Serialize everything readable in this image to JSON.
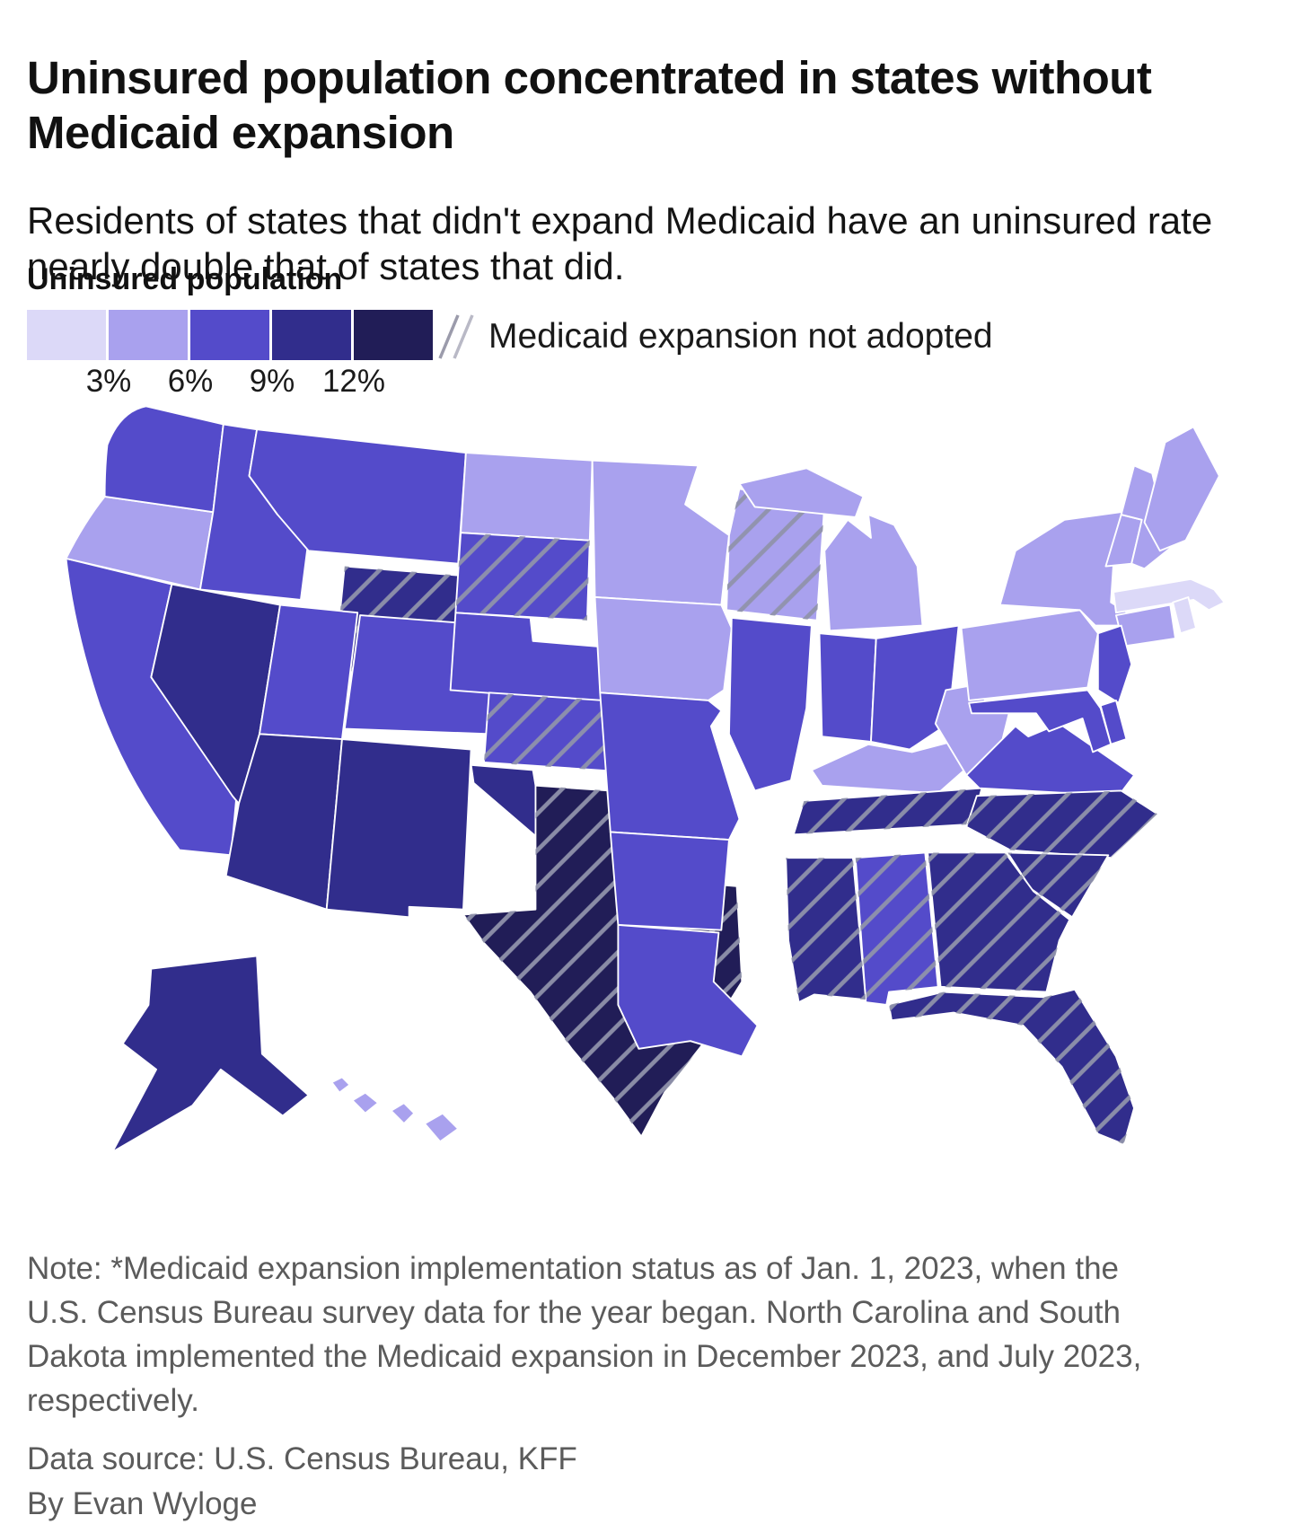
{
  "header": {
    "title": "Uninsured population concentrated in states without Medicaid expansion",
    "subtitle": "Residents of states that didn't expand Medicaid have an uninsured rate nearly double that of states that did."
  },
  "legend": {
    "title": "Uninsured population",
    "tick_labels": [
      "3%",
      "6%",
      "9%",
      "12%"
    ],
    "bucket_colors": [
      "#dcd9f8",
      "#a9a1ee",
      "#544bca",
      "#312d8c",
      "#211d57"
    ],
    "hatch_label": "Medicaid expansion not adopted",
    "hatch_line_color": "#8f92ab",
    "state_border_color": "#ffffff"
  },
  "chart_data": {
    "type": "choropleth",
    "title": "Uninsured population by state",
    "unit": "percent of residents uninsured",
    "buckets": [
      "<3%",
      "3-6%",
      "6-9%",
      "9-12%",
      "12%+"
    ],
    "hatch_meaning": "Medicaid expansion not adopted",
    "states": [
      {
        "abbr": "AL",
        "name": "Alabama",
        "bucket": 2,
        "expansion_not_adopted": true
      },
      {
        "abbr": "AK",
        "name": "Alaska",
        "bucket": 3,
        "expansion_not_adopted": false
      },
      {
        "abbr": "AZ",
        "name": "Arizona",
        "bucket": 3,
        "expansion_not_adopted": false
      },
      {
        "abbr": "AR",
        "name": "Arkansas",
        "bucket": 2,
        "expansion_not_adopted": false
      },
      {
        "abbr": "CA",
        "name": "California",
        "bucket": 2,
        "expansion_not_adopted": false
      },
      {
        "abbr": "CO",
        "name": "Colorado",
        "bucket": 2,
        "expansion_not_adopted": false
      },
      {
        "abbr": "CT",
        "name": "Connecticut",
        "bucket": 1,
        "expansion_not_adopted": false
      },
      {
        "abbr": "DE",
        "name": "Delaware",
        "bucket": 2,
        "expansion_not_adopted": false
      },
      {
        "abbr": "FL",
        "name": "Florida",
        "bucket": 3,
        "expansion_not_adopted": true
      },
      {
        "abbr": "GA",
        "name": "Georgia",
        "bucket": 3,
        "expansion_not_adopted": true
      },
      {
        "abbr": "HI",
        "name": "Hawaii",
        "bucket": 1,
        "expansion_not_adopted": false
      },
      {
        "abbr": "ID",
        "name": "Idaho",
        "bucket": 2,
        "expansion_not_adopted": false
      },
      {
        "abbr": "IL",
        "name": "Illinois",
        "bucket": 2,
        "expansion_not_adopted": false
      },
      {
        "abbr": "IN",
        "name": "Indiana",
        "bucket": 2,
        "expansion_not_adopted": false
      },
      {
        "abbr": "IA",
        "name": "Iowa",
        "bucket": 1,
        "expansion_not_adopted": false
      },
      {
        "abbr": "KS",
        "name": "Kansas",
        "bucket": 2,
        "expansion_not_adopted": true
      },
      {
        "abbr": "KY",
        "name": "Kentucky",
        "bucket": 1,
        "expansion_not_adopted": false
      },
      {
        "abbr": "LA",
        "name": "Louisiana",
        "bucket": 2,
        "expansion_not_adopted": false
      },
      {
        "abbr": "ME",
        "name": "Maine",
        "bucket": 1,
        "expansion_not_adopted": false
      },
      {
        "abbr": "MD",
        "name": "Maryland",
        "bucket": 2,
        "expansion_not_adopted": false
      },
      {
        "abbr": "MA",
        "name": "Massachusetts",
        "bucket": 0,
        "expansion_not_adopted": false
      },
      {
        "abbr": "MI",
        "name": "Michigan",
        "bucket": 1,
        "expansion_not_adopted": false
      },
      {
        "abbr": "MN",
        "name": "Minnesota",
        "bucket": 1,
        "expansion_not_adopted": false
      },
      {
        "abbr": "MS",
        "name": "Mississippi",
        "bucket": 3,
        "expansion_not_adopted": true
      },
      {
        "abbr": "MO",
        "name": "Missouri",
        "bucket": 2,
        "expansion_not_adopted": false
      },
      {
        "abbr": "MT",
        "name": "Montana",
        "bucket": 2,
        "expansion_not_adopted": false
      },
      {
        "abbr": "NE",
        "name": "Nebraska",
        "bucket": 2,
        "expansion_not_adopted": false
      },
      {
        "abbr": "NV",
        "name": "Nevada",
        "bucket": 3,
        "expansion_not_adopted": false
      },
      {
        "abbr": "NH",
        "name": "New Hampshire",
        "bucket": 1,
        "expansion_not_adopted": false
      },
      {
        "abbr": "NJ",
        "name": "New Jersey",
        "bucket": 2,
        "expansion_not_adopted": false
      },
      {
        "abbr": "NM",
        "name": "New Mexico",
        "bucket": 3,
        "expansion_not_adopted": false
      },
      {
        "abbr": "NY",
        "name": "New York",
        "bucket": 1,
        "expansion_not_adopted": false
      },
      {
        "abbr": "NC",
        "name": "North Carolina",
        "bucket": 3,
        "expansion_not_adopted": true
      },
      {
        "abbr": "ND",
        "name": "North Dakota",
        "bucket": 1,
        "expansion_not_adopted": false
      },
      {
        "abbr": "OH",
        "name": "Ohio",
        "bucket": 2,
        "expansion_not_adopted": false
      },
      {
        "abbr": "OK",
        "name": "Oklahoma",
        "bucket": 3,
        "expansion_not_adopted": false
      },
      {
        "abbr": "OR",
        "name": "Oregon",
        "bucket": 1,
        "expansion_not_adopted": false
      },
      {
        "abbr": "PA",
        "name": "Pennsylvania",
        "bucket": 1,
        "expansion_not_adopted": false
      },
      {
        "abbr": "RI",
        "name": "Rhode Island",
        "bucket": 0,
        "expansion_not_adopted": false
      },
      {
        "abbr": "SC",
        "name": "South Carolina",
        "bucket": 3,
        "expansion_not_adopted": true
      },
      {
        "abbr": "SD",
        "name": "South Dakota",
        "bucket": 2,
        "expansion_not_adopted": true
      },
      {
        "abbr": "TN",
        "name": "Tennessee",
        "bucket": 3,
        "expansion_not_adopted": true
      },
      {
        "abbr": "TX",
        "name": "Texas",
        "bucket": 4,
        "expansion_not_adopted": true
      },
      {
        "abbr": "UT",
        "name": "Utah",
        "bucket": 2,
        "expansion_not_adopted": false
      },
      {
        "abbr": "VT",
        "name": "Vermont",
        "bucket": 1,
        "expansion_not_adopted": false
      },
      {
        "abbr": "VA",
        "name": "Virginia",
        "bucket": 2,
        "expansion_not_adopted": false
      },
      {
        "abbr": "WA",
        "name": "Washington",
        "bucket": 2,
        "expansion_not_adopted": false
      },
      {
        "abbr": "WV",
        "name": "West Virginia",
        "bucket": 1,
        "expansion_not_adopted": false
      },
      {
        "abbr": "WI",
        "name": "Wisconsin",
        "bucket": 1,
        "expansion_not_adopted": true
      },
      {
        "abbr": "WY",
        "name": "Wyoming",
        "bucket": 3,
        "expansion_not_adopted": true
      }
    ]
  },
  "footer": {
    "note": "Note: *Medicaid expansion implementation status as of Jan. 1, 2023, when the U.S. Census Bureau survey data for the year began. North Carolina and South Dakota implemented the Medicaid expansion in December 2023, and July 2023, respectively.",
    "source": "Data source: U.S. Census Bureau, KFF",
    "byline": "By Evan Wyloge"
  }
}
